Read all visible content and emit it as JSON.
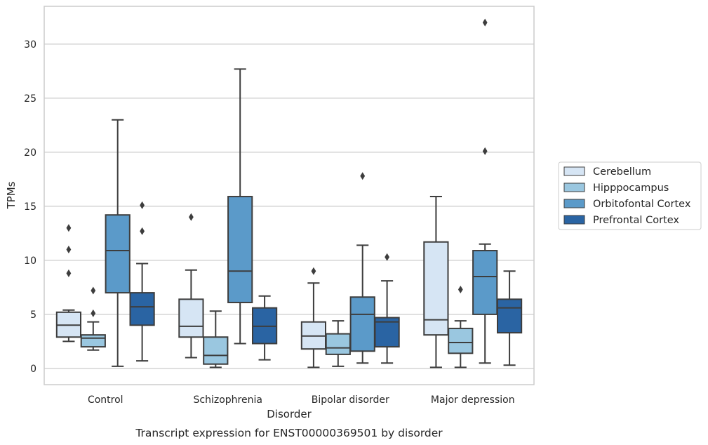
{
  "chart_data": {
    "type": "box",
    "xlabel": "Disorder",
    "ylabel": "TPMs",
    "caption": "Transcript expression for ENST00000369501 by disorder",
    "ylim": [
      -1.5,
      33.5
    ],
    "yticks": [
      0,
      5,
      10,
      15,
      20,
      25,
      30
    ],
    "grid": "horizontal",
    "legend_position": "right",
    "categories": [
      "Control",
      "Schizophrenia",
      "Bipolar disorder",
      "Major depression"
    ],
    "series": [
      {
        "name": "Cerebellum",
        "color": "#d6e5f4",
        "boxes": [
          {
            "whisker_low": 2.5,
            "q1": 2.9,
            "median": 4.0,
            "q3": 5.2,
            "whisker_high": 5.4,
            "outliers": [
              8.8,
              11.0,
              13.0
            ]
          },
          {
            "whisker_low": 1.0,
            "q1": 2.9,
            "median": 3.9,
            "q3": 6.4,
            "whisker_high": 9.1,
            "outliers": [
              14.0
            ]
          },
          {
            "whisker_low": 0.1,
            "q1": 1.8,
            "median": 3.0,
            "q3": 4.3,
            "whisker_high": 7.9,
            "outliers": [
              9.0
            ]
          },
          {
            "whisker_low": 0.1,
            "q1": 3.1,
            "median": 4.5,
            "q3": 11.7,
            "whisker_high": 15.9,
            "outliers": []
          }
        ]
      },
      {
        "name": "Hipppocampus",
        "color": "#9ac7e0",
        "boxes": [
          {
            "whisker_low": 1.7,
            "q1": 2.0,
            "median": 2.8,
            "q3": 3.1,
            "whisker_high": 4.3,
            "outliers": [
              5.1,
              7.2
            ]
          },
          {
            "whisker_low": 0.1,
            "q1": 0.4,
            "median": 1.2,
            "q3": 2.9,
            "whisker_high": 5.3,
            "outliers": []
          },
          {
            "whisker_low": 0.2,
            "q1": 1.3,
            "median": 1.9,
            "q3": 3.2,
            "whisker_high": 4.4,
            "outliers": []
          },
          {
            "whisker_low": 0.1,
            "q1": 1.4,
            "median": 2.4,
            "q3": 3.7,
            "whisker_high": 4.4,
            "outliers": [
              7.3
            ]
          }
        ]
      },
      {
        "name": "Orbitofontal Cortex",
        "color": "#5b9ac9",
        "boxes": [
          {
            "whisker_low": 0.2,
            "q1": 7.0,
            "median": 10.9,
            "q3": 14.2,
            "whisker_high": 23.0,
            "outliers": []
          },
          {
            "whisker_low": 2.3,
            "q1": 6.1,
            "median": 9.0,
            "q3": 15.9,
            "whisker_high": 27.7,
            "outliers": []
          },
          {
            "whisker_low": 0.5,
            "q1": 1.6,
            "median": 5.0,
            "q3": 6.6,
            "whisker_high": 11.4,
            "outliers": [
              17.8
            ]
          },
          {
            "whisker_low": 0.5,
            "q1": 5.0,
            "median": 8.5,
            "q3": 10.9,
            "whisker_high": 11.5,
            "outliers": [
              20.1,
              32.0
            ]
          }
        ]
      },
      {
        "name": "Prefrontal Cortex",
        "color": "#2a64a3",
        "boxes": [
          {
            "whisker_low": 0.7,
            "q1": 4.0,
            "median": 5.7,
            "q3": 7.0,
            "whisker_high": 9.7,
            "outliers": [
              12.7,
              15.1
            ]
          },
          {
            "whisker_low": 0.8,
            "q1": 2.3,
            "median": 3.9,
            "q3": 5.6,
            "whisker_high": 6.7,
            "outliers": []
          },
          {
            "whisker_low": 0.5,
            "q1": 2.0,
            "median": 4.3,
            "q3": 4.7,
            "whisker_high": 8.1,
            "outliers": [
              10.3
            ]
          },
          {
            "whisker_low": 0.3,
            "q1": 3.3,
            "median": 5.6,
            "q3": 6.4,
            "whisker_high": 9.0,
            "outliers": []
          }
        ]
      }
    ]
  }
}
